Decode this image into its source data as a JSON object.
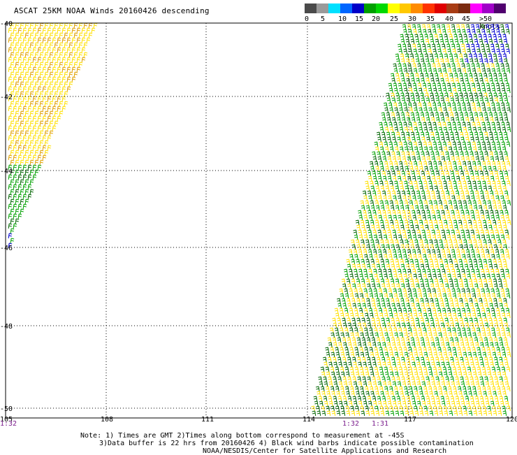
{
  "title": "ASCAT 25KM NOAA Winds 20160426 descending",
  "legend": {
    "labels": [
      "0",
      "5",
      "10",
      "15",
      "20",
      "25",
      "30",
      "35",
      "40",
      "45",
      ">50 knots"
    ],
    "colors": [
      "#4a4a4a",
      "#9a9a9a",
      "#00e0ff",
      "#0066ff",
      "#0000c8",
      "#00a000",
      "#00d800",
      "#ffff00",
      "#ffc800",
      "#ff8c00",
      "#ff3300",
      "#e00000",
      "#a83c14",
      "#7a2a10",
      "#ff00ff",
      "#a000c8",
      "#50006e"
    ]
  },
  "map": {
    "lat_labels": [
      "-40",
      "-42",
      "-44",
      "-46",
      "-48",
      "-50"
    ],
    "lon_labels": [
      "105",
      "108",
      "111",
      "114",
      "117",
      "120"
    ],
    "time_labels": [
      "1:32",
      "1:32",
      "1:31"
    ],
    "colors": {
      "yellow": "#ffe000",
      "orange": "#e0a000",
      "green": "#00a000",
      "darkgreen": "#006400",
      "blue": "#0000d0",
      "grid": "#000000"
    }
  },
  "notes": {
    "line1": "Note: 1) Times are GMT 2)Times along bottom correspond to measurement at -45S",
    "line2": "3)Data buffer is 22 hrs from 20160426 4) Black wind barbs indicate possible contamination",
    "line3": "NOAA/NESDIS/Center for Satellite Applications and Research"
  }
}
